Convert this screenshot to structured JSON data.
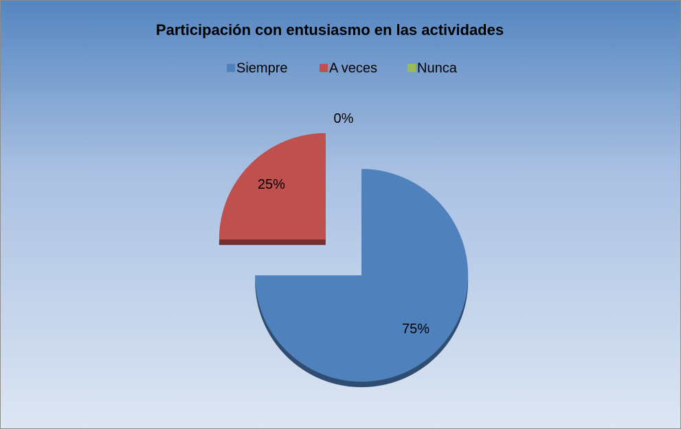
{
  "chart_data": {
    "type": "pie",
    "title": "Participación con entusiasmo en las actividades",
    "categories": [
      "Siempre",
      "A veces",
      "Nunca"
    ],
    "values": [
      75,
      25,
      0
    ],
    "value_labels": [
      "75%",
      "25%",
      "0%"
    ],
    "colors": [
      "#4f81bd",
      "#c0504d",
      "#9bbb59"
    ],
    "legend": "top"
  }
}
